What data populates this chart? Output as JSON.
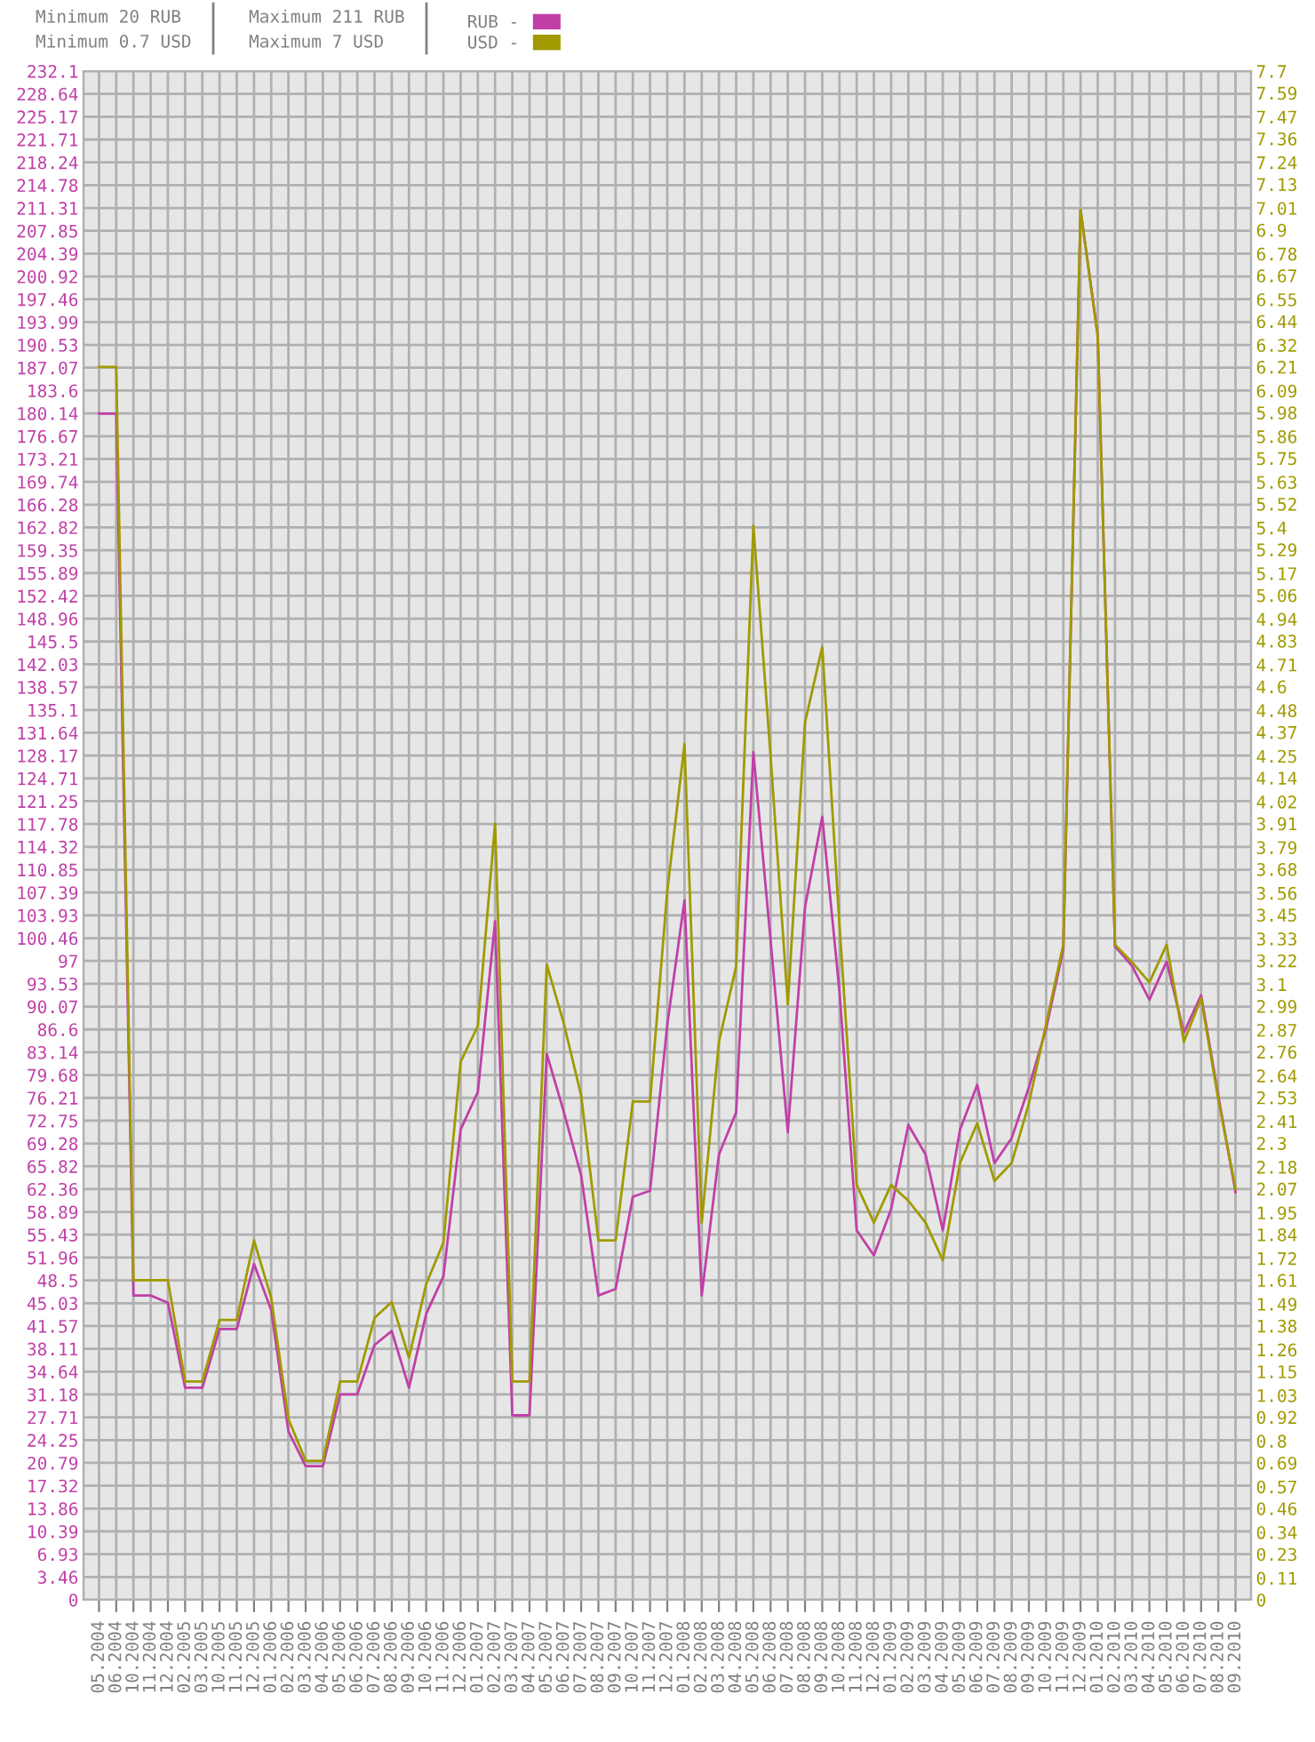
{
  "chart_data": {
    "type": "line",
    "categories": [
      "05.2004",
      "06.2004",
      "10.2004",
      "11.2004",
      "12.2004",
      "02.2005",
      "03.2005",
      "10.2005",
      "11.2005",
      "12.2005",
      "01.2006",
      "02.2006",
      "03.2006",
      "04.2006",
      "05.2006",
      "06.2006",
      "07.2006",
      "08.2006",
      "09.2006",
      "10.2006",
      "11.2006",
      "12.2006",
      "01.2007",
      "02.2007",
      "03.2007",
      "04.2007",
      "05.2007",
      "06.2007",
      "07.2007",
      "08.2007",
      "09.2007",
      "10.2007",
      "11.2007",
      "12.2007",
      "01.2008",
      "02.2008",
      "03.2008",
      "04.2008",
      "05.2008",
      "06.2008",
      "07.2008",
      "08.2008",
      "09.2008",
      "10.2008",
      "11.2008",
      "12.2008",
      "01.2009",
      "02.2009",
      "03.2009",
      "04.2009",
      "05.2009",
      "06.2009",
      "07.2009",
      "08.2009",
      "09.2009",
      "10.2009",
      "11.2009",
      "12.2009",
      "01.2010",
      "02.2010",
      "03.2010",
      "04.2010",
      "05.2010",
      "06.2010",
      "07.2010",
      "08.2010",
      "09.2010"
    ],
    "series": [
      {
        "name": "RUB -",
        "color": "#c040a8",
        "values": [
          180.1,
          180.1,
          46.2,
          46.2,
          45.1,
          32.2,
          32.2,
          41.1,
          41.1,
          51.0,
          44.0,
          25.6,
          20.3,
          20.3,
          31.2,
          31.2,
          38.7,
          40.8,
          32.2,
          43.4,
          49.1,
          71.4,
          77.1,
          103.0,
          28.0,
          28.0,
          82.9,
          74.0,
          64.4,
          46.2,
          47.2,
          61.2,
          62.1,
          87.3,
          106.2,
          46.2,
          67.6,
          74.0,
          128.7,
          100.1,
          71.0,
          105.2,
          118.9,
          92.4,
          56.1,
          52.3,
          59.3,
          72.1,
          67.6,
          56.1,
          71.4,
          78.2,
          66.3,
          70.1,
          77.8,
          86.7,
          98.8,
          211,
          192,
          99.2,
          96.2,
          91.1,
          96.9,
          86.1,
          91.8,
          76.5,
          61.9
        ]
      },
      {
        "name": "USD -",
        "color": "#a09a00",
        "axis": "y2",
        "values": [
          6.21,
          6.21,
          1.61,
          1.61,
          1.61,
          1.1,
          1.1,
          1.41,
          1.41,
          1.81,
          1.52,
          0.91,
          0.7,
          0.7,
          1.1,
          1.1,
          1.42,
          1.5,
          1.22,
          1.59,
          1.8,
          2.71,
          2.89,
          3.91,
          1.1,
          1.1,
          3.2,
          2.9,
          2.54,
          1.81,
          1.81,
          2.51,
          2.51,
          3.57,
          4.31,
          1.9,
          2.81,
          3.19,
          5.41,
          4.25,
          3.0,
          4.42,
          4.8,
          3.4,
          2.09,
          1.9,
          2.09,
          2.01,
          1.9,
          1.71,
          2.2,
          2.4,
          2.11,
          2.2,
          2.5,
          2.9,
          3.3,
          7.0,
          6.36,
          3.3,
          3.21,
          3.11,
          3.3,
          2.81,
          3.03,
          2.52,
          2.07
        ]
      }
    ],
    "ylim": [
      0,
      232.1
    ],
    "yticks": [
      0,
      3.46,
      6.93,
      10.39,
      13.86,
      17.32,
      20.79,
      24.25,
      27.71,
      31.18,
      34.64,
      38.11,
      41.57,
      45.03,
      48.5,
      51.96,
      55.43,
      58.89,
      62.36,
      65.82,
      69.28,
      72.75,
      76.21,
      79.68,
      83.14,
      86.6,
      90.07,
      93.53,
      97,
      100.46,
      103.93,
      107.39,
      110.85,
      114.32,
      117.78,
      121.25,
      124.71,
      128.17,
      131.64,
      135.1,
      138.57,
      142.03,
      145.5,
      148.96,
      152.42,
      155.89,
      159.35,
      162.82,
      166.28,
      169.74,
      173.21,
      176.67,
      180.14,
      183.6,
      187.07,
      190.53,
      193.99,
      197.46,
      200.92,
      204.39,
      207.85,
      211.31,
      214.78,
      218.24,
      221.71,
      225.17,
      228.64,
      232.1
    ],
    "y2lim": [
      0,
      7.7
    ],
    "y2ticks": [
      0,
      0.11,
      0.23,
      0.34,
      0.46,
      0.57,
      0.69,
      0.8,
      0.92,
      1.03,
      1.15,
      1.26,
      1.38,
      1.49,
      1.61,
      1.72,
      1.84,
      1.95,
      2.07,
      2.18,
      2.3,
      2.41,
      2.53,
      2.64,
      2.76,
      2.87,
      2.99,
      3.1,
      3.22,
      3.33,
      3.45,
      3.56,
      3.68,
      3.79,
      3.91,
      4.02,
      4.14,
      4.25,
      4.37,
      4.48,
      4.6,
      4.71,
      4.83,
      4.94,
      5.06,
      5.17,
      5.29,
      5.4,
      5.52,
      5.63,
      5.75,
      5.86,
      5.98,
      6.09,
      6.21,
      6.32,
      6.44,
      6.55,
      6.67,
      6.78,
      6.9,
      7.01,
      7.13,
      7.24,
      7.36,
      7.47,
      7.59,
      7.7
    ],
    "annotations": [
      "Minimum 20 RUB",
      "Minimum 0.7 USD",
      "Maximum 211 RUB",
      "Maximum 7 USD"
    ],
    "grid": true,
    "legend": "top",
    "marker": "none",
    "line_style": "solid"
  }
}
